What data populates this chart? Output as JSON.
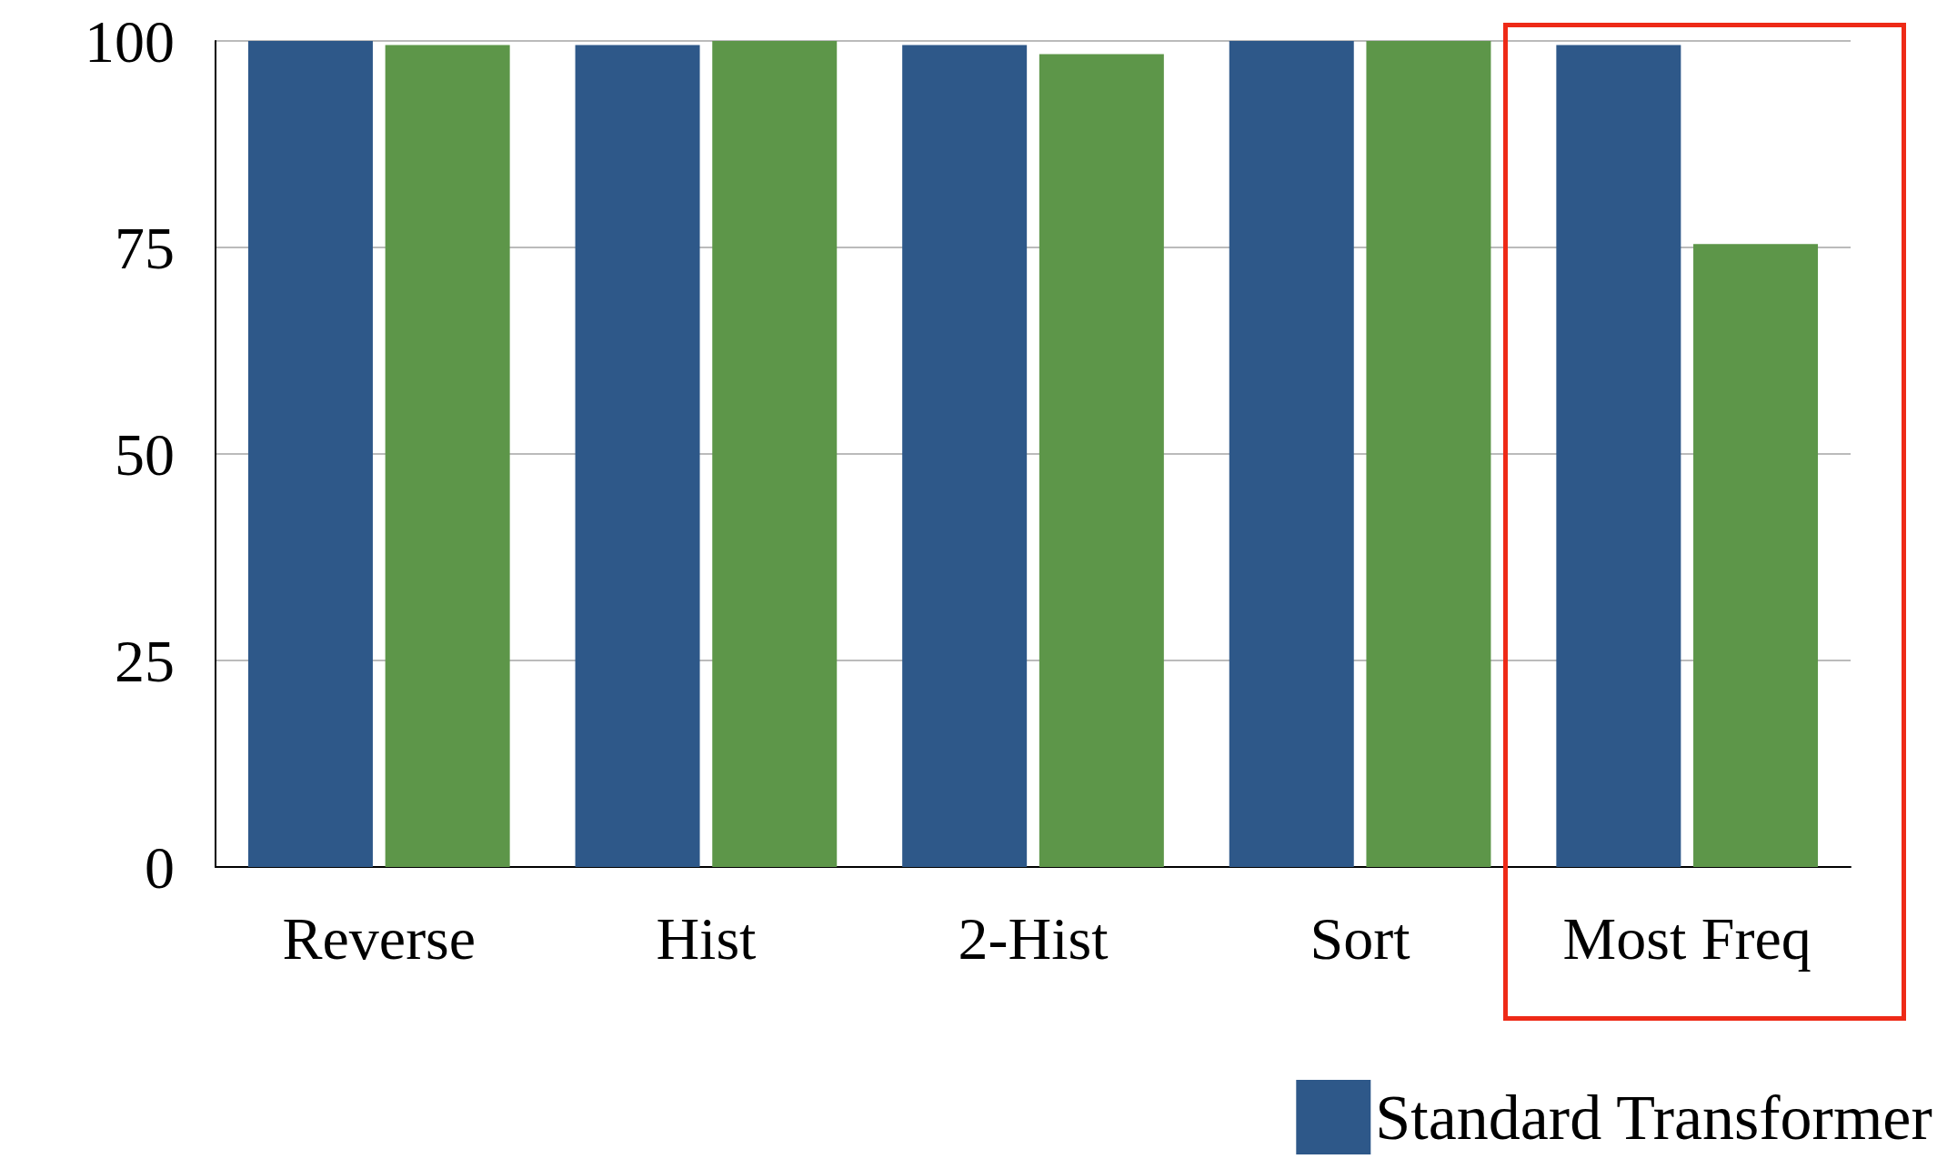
{
  "chart_data": {
    "type": "bar",
    "categories": [
      "Reverse",
      "Hist",
      "2-Hist",
      "Sort",
      "Most Freq"
    ],
    "series": [
      {
        "name": "Standard Transformer",
        "color": "#2e5889",
        "values": [
          100,
          99.5,
          99.5,
          100,
          99.5
        ]
      },
      {
        "color": "#5d9649",
        "values": [
          99.5,
          100,
          98.4,
          100,
          75.4
        ]
      }
    ],
    "ylim": [
      0,
      100
    ],
    "yticks": [
      0,
      25,
      50,
      75,
      100
    ],
    "grid": "y",
    "legend": "bottom right"
  }
}
